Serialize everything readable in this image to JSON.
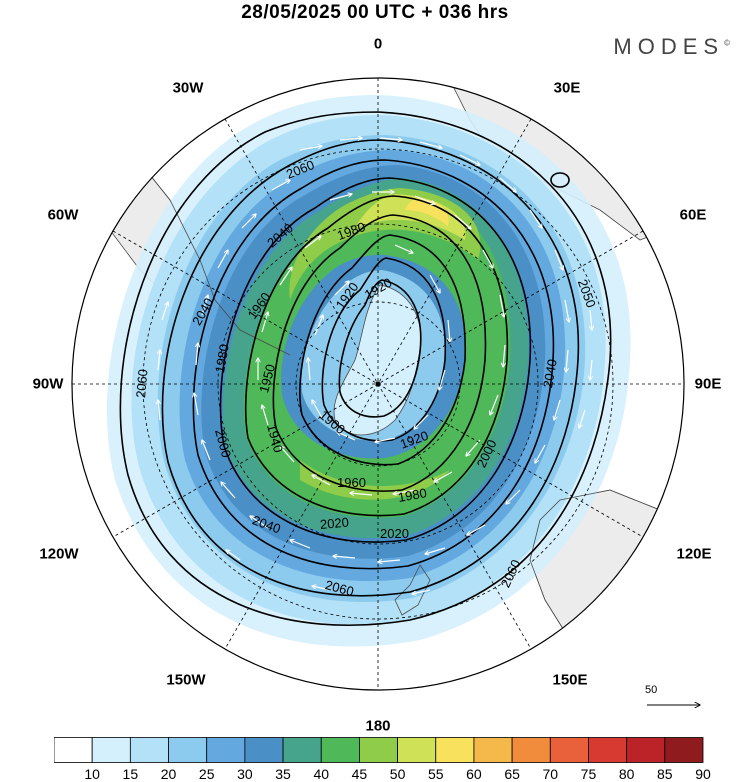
{
  "title": "28/05/2025  00 UTC  + 036 hrs",
  "logo": "MODES",
  "logo_mark": "©",
  "longitude_labels": {
    "top": "0",
    "bottom": "180",
    "left": "90W",
    "right": "90E",
    "w30": "30W",
    "e30": "30E",
    "w60": "60W",
    "e60": "60E",
    "w120": "120W",
    "e120": "120E",
    "w150": "150W",
    "e150": "150E"
  },
  "contour_labels": [
    "2060",
    "2040",
    "1980",
    "1920",
    "2060",
    "2040",
    "1960",
    "1920",
    "2050",
    "2060",
    "2040",
    "2000",
    "1950",
    "1940",
    "1980",
    "1900",
    "1920",
    "2000",
    "1960",
    "1980",
    "2020",
    "2020",
    "2040",
    "2060",
    "2060",
    "2060"
  ],
  "reference_vector": "50",
  "colorbar": {
    "ticks": [
      "10",
      "15",
      "20",
      "25",
      "30",
      "35",
      "40",
      "45",
      "50",
      "55",
      "60",
      "65",
      "70",
      "75",
      "80",
      "85",
      "90"
    ],
    "colors": [
      "#ffffff",
      "#d4f0fc",
      "#b3e1f7",
      "#8ccbee",
      "#63a9df",
      "#4b8fc7",
      "#46a48c",
      "#4fb858",
      "#8fcc4a",
      "#cee157",
      "#f7e15d",
      "#f5b84b",
      "#f08c3c",
      "#e8613a",
      "#d63a31",
      "#bb2329",
      "#8f1b1e"
    ],
    "units_color_names": "wind speed shading"
  },
  "colors": {
    "land": "#ececec",
    "coast": "#4a4a4a",
    "contour": "#000000",
    "vector": "#ffffff"
  }
}
